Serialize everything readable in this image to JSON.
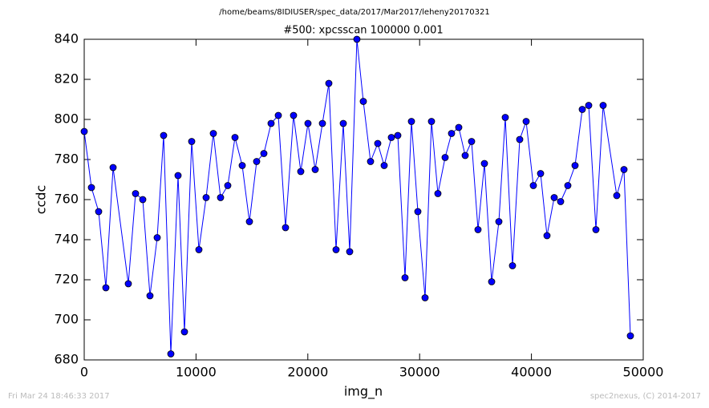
{
  "chart_data": {
    "type": "line",
    "suptitle": "/home/beams/8IDIUSER/spec_data/2017/Mar2017/leheny20170321",
    "title": "#500: xpcsscan 100000 0.001",
    "x_label": "img_n",
    "y_label": "ccdc",
    "footer_left": "Fri Mar 24 18:46:33 2017",
    "footer_right": "spec2nexus, (C) 2014-2017",
    "x": [
      0,
      646,
      1291,
      1937,
      2583,
      3945,
      4591,
      5237,
      5882,
      6528,
      7102,
      7748,
      8393,
      8967,
      9613,
      10258,
      10904,
      11550,
      12195,
      12841,
      13487,
      14132,
      14778,
      15423,
      16069,
      16714,
      17360,
      18006,
      18723,
      19369,
      20014,
      20660,
      21306,
      21880,
      22525,
      23171,
      23745,
      24390,
      24964,
      25610,
      26255,
      26829,
      27475,
      28049,
      28694,
      29268,
      29842,
      30487,
      31061,
      31635,
      32281,
      32855,
      33501,
      34075,
      34648,
      35222,
      35796,
      36442,
      37088,
      37661,
      38307,
      38953,
      39527,
      40172,
      40818,
      41392,
      42037,
      42611,
      43257,
      43902,
      44548,
      45122,
      45768,
      46413,
      47633,
      48279,
      48852
    ],
    "series": [
      {
        "color": "#0000ff",
        "values": [
          794,
          766,
          754,
          716,
          776,
          718,
          763,
          760,
          712,
          741,
          792,
          683,
          772,
          694,
          789,
          735,
          761,
          793,
          761,
          767,
          791,
          777,
          749,
          779,
          783,
          798,
          802,
          746,
          802,
          774,
          798,
          775,
          798,
          818,
          735,
          798,
          734,
          840,
          809,
          779,
          788,
          777,
          791,
          792,
          721,
          799,
          754,
          711,
          799,
          763,
          781,
          793,
          796,
          782,
          789,
          745,
          778,
          719,
          749,
          801,
          727,
          790,
          799,
          767,
          773,
          742,
          761,
          759,
          767,
          777,
          805,
          807,
          745,
          807,
          762,
          775,
          692
        ]
      }
    ],
    "xlim": [
      0,
      50000
    ],
    "xticks": [
      0,
      10000,
      20000,
      30000,
      40000,
      50000
    ],
    "ylim": [
      680,
      840
    ],
    "yticks": [
      680,
      700,
      720,
      740,
      760,
      780,
      800,
      820,
      840
    ]
  }
}
